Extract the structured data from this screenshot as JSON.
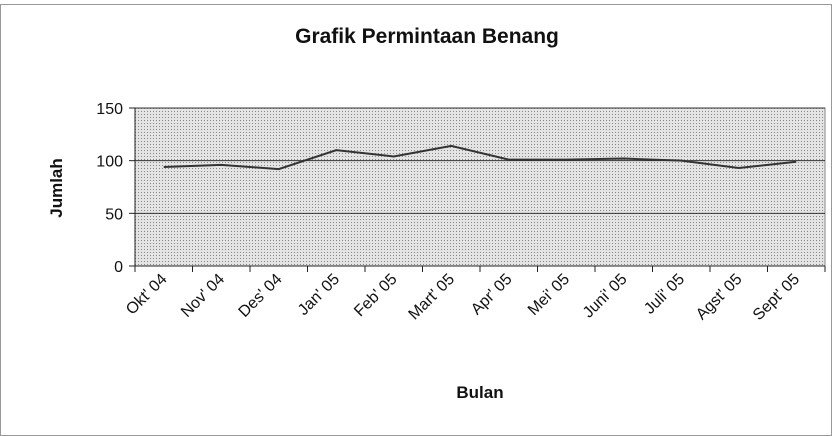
{
  "chart_data": {
    "type": "line",
    "title": "Grafik Permintaan Benang",
    "x_label": "Bulan",
    "y_label": "Jumlah",
    "categories": [
      "Okt' 04",
      "Nov' 04",
      "Des' 04",
      "Jan' 05",
      "Feb' 05",
      "Mart' 05",
      "Apr' 05",
      "Mei' 05",
      "Juni' 05",
      "Juli' 05",
      "Agst' 05",
      "Sept' 05"
    ],
    "series": [
      {
        "name": "Jumlah",
        "color": "#333333",
        "values": [
          94,
          96,
          92,
          110,
          104,
          114,
          101,
          101,
          102,
          100,
          93,
          99
        ]
      }
    ],
    "ylim": [
      0,
      150
    ],
    "yticks": [
      0,
      50,
      100,
      150
    ],
    "grid": true
  }
}
